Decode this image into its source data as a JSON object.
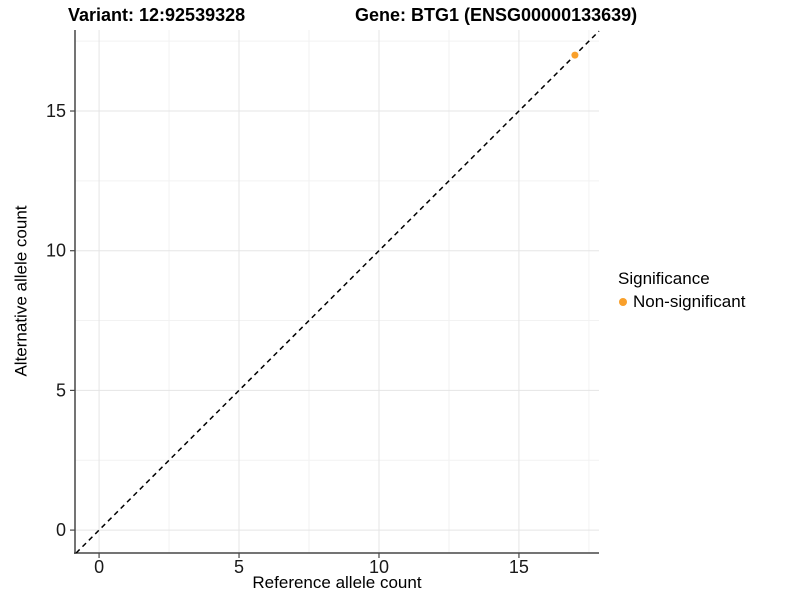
{
  "figure": {
    "title_left": "Variant: 12:92539328",
    "title_right": "Gene: BTG1 (ENSG00000133639)",
    "background": "#ffffff"
  },
  "chart_data": {
    "type": "scatter",
    "title": "Variant: 12:92539328 — Gene: BTG1 (ENSG00000133639)",
    "xlabel": "Reference allele count",
    "ylabel": "Alternative allele count",
    "xlim": [
      -0.86,
      17.86
    ],
    "ylim": [
      -0.82,
      17.9
    ],
    "x_ticks": [
      0,
      5,
      10,
      15
    ],
    "y_ticks": [
      0,
      5,
      10,
      15
    ],
    "x_minor_ticks": [
      2.5,
      7.5,
      12.5,
      17.5
    ],
    "y_minor_ticks": [
      2.5,
      7.5,
      12.5,
      17.5
    ],
    "grid": "major+minor",
    "points": [
      {
        "x": 17,
        "y": 17,
        "series": "Non-significant"
      }
    ],
    "reference_line": {
      "type": "abline",
      "slope": 1,
      "intercept": 0,
      "linetype": "dashed",
      "color": "#000000"
    },
    "series": [
      {
        "name": "Non-significant",
        "color": "#F9A02B"
      }
    ],
    "legend": {
      "title": "Significance",
      "position": "right",
      "items": [
        {
          "label": "Non-significant",
          "color": "#F9A02B"
        }
      ]
    }
  },
  "colors": {
    "point_orange": "#F9A02B",
    "grid_major": "#e5e5e5",
    "grid_minor": "#f2f2f2",
    "axis_line": "#474747",
    "tick_mark": "#474747",
    "tick_text": "#1a1a1a",
    "dashed_line": "#000000",
    "background": "#ffffff"
  }
}
